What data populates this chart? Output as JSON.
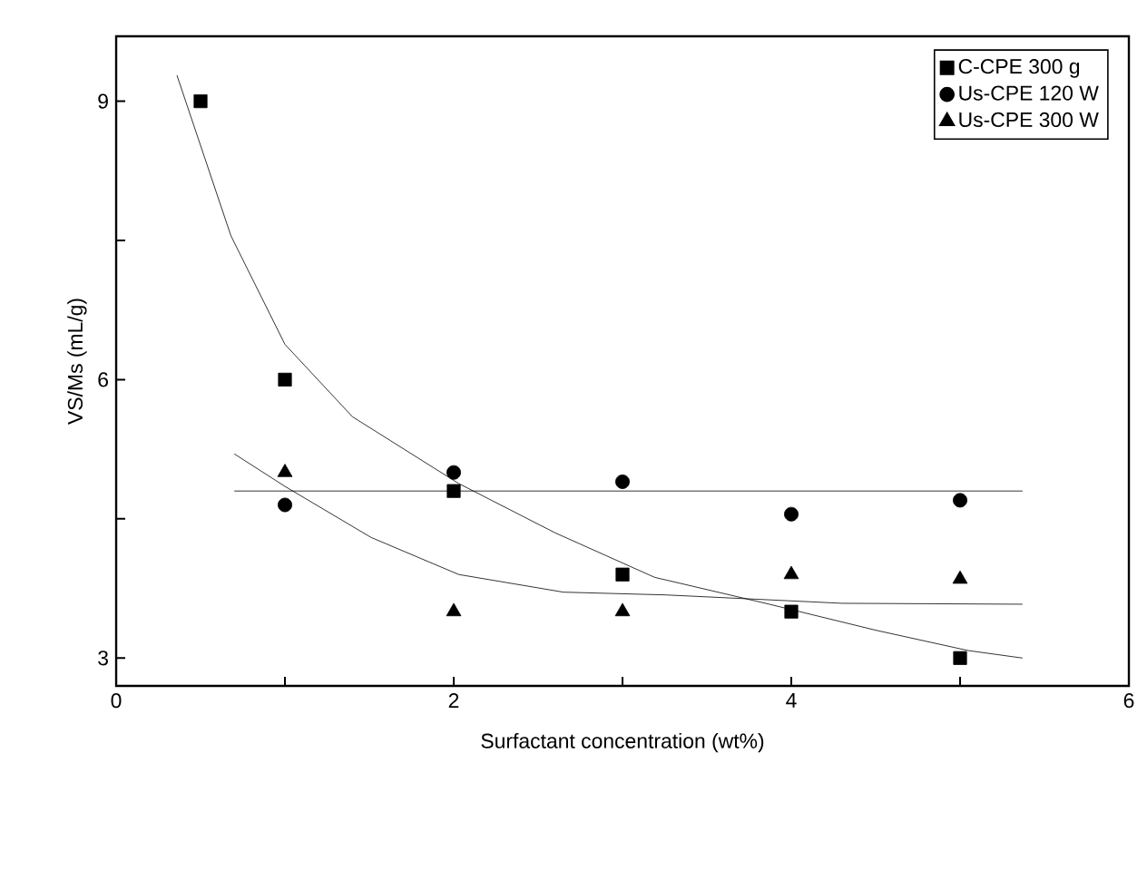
{
  "chart_data": {
    "type": "scatter",
    "xlabel": "Surfactant concentration (wt%)",
    "ylabel": "VS/Ms (mL/g)",
    "xlim": [
      0,
      6
    ],
    "ylim": [
      2.7,
      9.7
    ],
    "xticks": [
      0,
      {
        "value": 1,
        "label": null
      },
      2,
      {
        "value": 3,
        "label": null
      },
      4,
      {
        "value": 5,
        "label": null
      },
      6
    ],
    "yticks": [
      3,
      {
        "value": 4.5,
        "label": null
      },
      6,
      {
        "value": 7.5,
        "label": null
      },
      9
    ],
    "grid": false,
    "legend": "top right",
    "series": [
      {
        "name": "C-CPE 300 g",
        "marker": "square",
        "color": "#000000",
        "x": [
          0.5,
          1,
          2,
          3,
          4,
          5
        ],
        "values": [
          9.0,
          6.0,
          4.8,
          3.9,
          3.5,
          3.0
        ]
      },
      {
        "name": "Us-CPE 120 W",
        "marker": "circle",
        "color": "#000000",
        "x": [
          1,
          2,
          3,
          4,
          5
        ],
        "values": [
          4.65,
          5.0,
          4.9,
          4.55,
          4.7
        ]
      },
      {
        "name": "Us-CPE 300 W",
        "marker": "triangle",
        "color": "#000000",
        "x": [
          1,
          2,
          3,
          4,
          5
        ],
        "values": [
          5.0,
          3.5,
          3.5,
          3.9,
          3.85
        ]
      },
      {
        "type": "line",
        "marker": "none",
        "color": "#000000",
        "x": [
          0.36,
          0.68,
          1.0,
          1.4,
          2.03,
          2.6,
          3.19,
          3.87,
          4.5,
          5.05,
          5.37
        ],
        "values": [
          9.28,
          7.55,
          6.38,
          5.6,
          4.88,
          4.35,
          3.87,
          3.58,
          3.3,
          3.08,
          3.0
        ]
      },
      {
        "type": "line",
        "marker": "none",
        "color": "#000000",
        "x": [
          0.7,
          5.37
        ],
        "values": [
          4.8,
          4.8
        ]
      },
      {
        "type": "line",
        "marker": "none",
        "color": "#000000",
        "x": [
          0.7,
          1.0,
          1.51,
          2.03,
          2.65,
          3.26,
          4.3,
          5.37
        ],
        "values": [
          5.2,
          4.85,
          4.3,
          3.9,
          3.71,
          3.68,
          3.59,
          3.58
        ]
      }
    ]
  }
}
